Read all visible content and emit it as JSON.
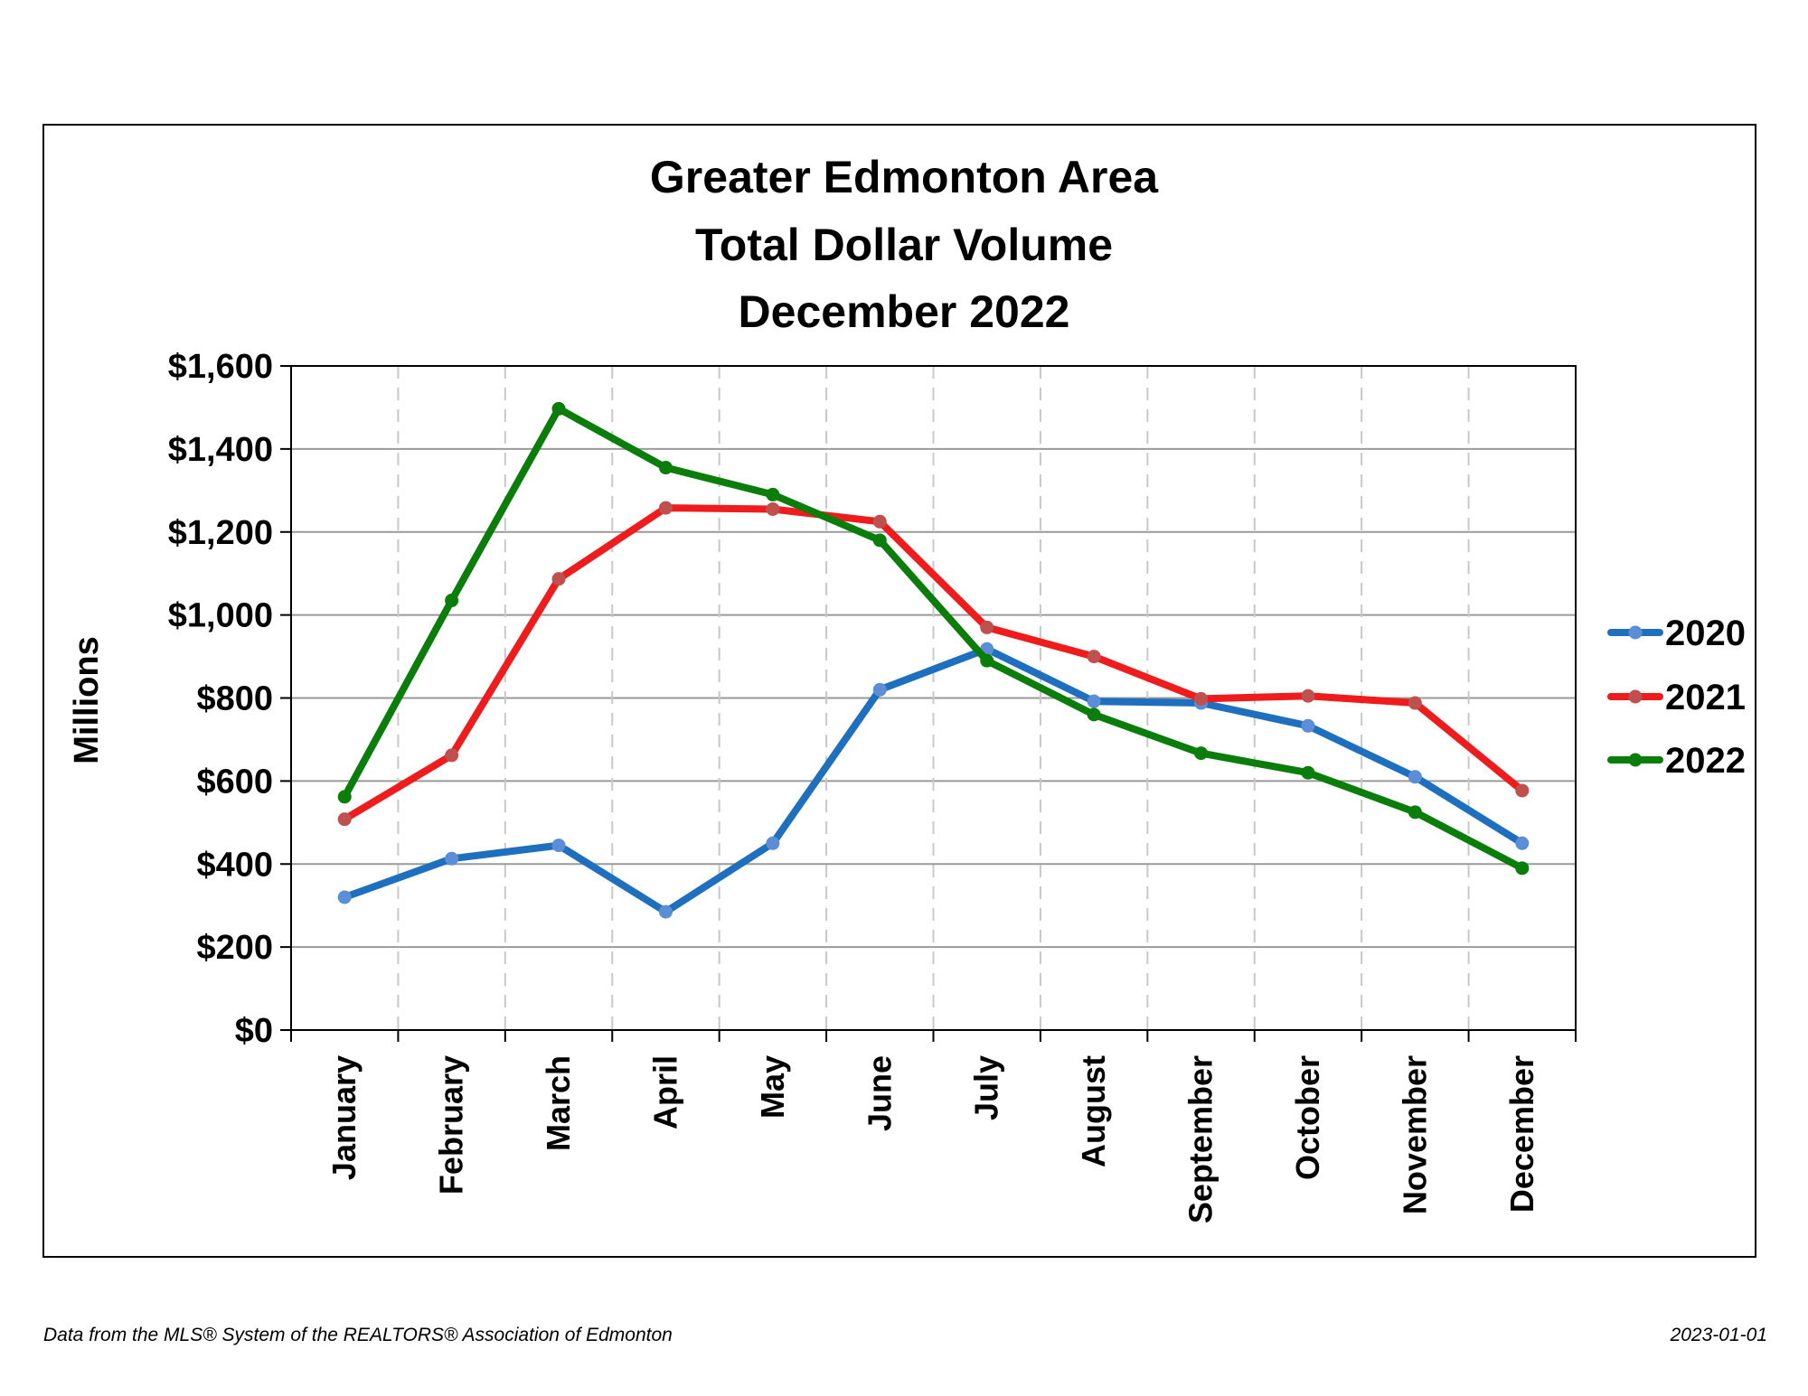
{
  "chart_data": {
    "type": "line",
    "title": [
      "Greater Edmonton Area",
      "Total Dollar Volume",
      "December 2022"
    ],
    "ylabel": "Millions",
    "xlabel": "",
    "ylim": [
      0,
      1600
    ],
    "yticks": [
      0,
      200,
      400,
      600,
      800,
      1000,
      1200,
      1400,
      1600
    ],
    "ytick_labels": [
      "$0",
      "$200",
      "$400",
      "$600",
      "$800",
      "$1,000",
      "$1,200",
      "$1,400",
      "$1,600"
    ],
    "categories": [
      "January",
      "February",
      "March",
      "April",
      "May",
      "June",
      "July",
      "August",
      "September",
      "October",
      "November",
      "December"
    ],
    "grid": "horizontal solid, vertical dashed",
    "legend_position": "right",
    "series": [
      {
        "name": "2020",
        "color": "#1f6fbf",
        "marker_color": "#5b8ed6",
        "values": [
          320,
          413,
          445,
          285,
          450,
          820,
          918,
          792,
          788,
          733,
          610,
          450
        ]
      },
      {
        "name": "2021",
        "color": "#ee1c1c",
        "marker_color": "#c0504d",
        "values": [
          508,
          662,
          1087,
          1258,
          1255,
          1225,
          970,
          900,
          798,
          805,
          788,
          577
        ]
      },
      {
        "name": "2022",
        "color": "#0b7d0b",
        "marker_color": "#0b7d0b",
        "values": [
          562,
          1035,
          1497,
          1355,
          1290,
          1180,
          890,
          760,
          667,
          620,
          525,
          390
        ]
      }
    ]
  },
  "footer": {
    "source": "Data from the MLS® System of the REALTORS® Association of Edmonton",
    "date": "2023-01-01"
  }
}
